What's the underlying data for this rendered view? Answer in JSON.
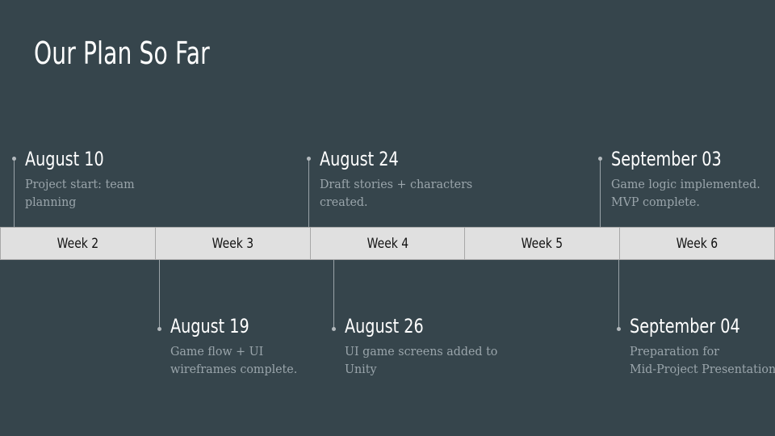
{
  "title": "Our Plan So Far",
  "weeks": [
    "Week 2",
    "Week 3",
    "Week 4",
    "Week 5",
    "Week 6"
  ],
  "events": [
    {
      "date": "August 10",
      "desc": [
        "Project start: team",
        "planning"
      ]
    },
    {
      "date": "August 19",
      "desc": [
        "Game flow + UI",
        "wireframes complete."
      ]
    },
    {
      "date": "August 24",
      "desc": [
        "Draft stories + characters",
        "created."
      ]
    },
    {
      "date": "August 26",
      "desc": [
        "UI game screens added to",
        "Unity"
      ]
    },
    {
      "date": "September 03",
      "desc": [
        "Game logic implemented.",
        "MVP complete."
      ]
    },
    {
      "date": "September 04",
      "desc": [
        "Preparation for",
        "Mid-Project Presentation"
      ]
    }
  ]
}
